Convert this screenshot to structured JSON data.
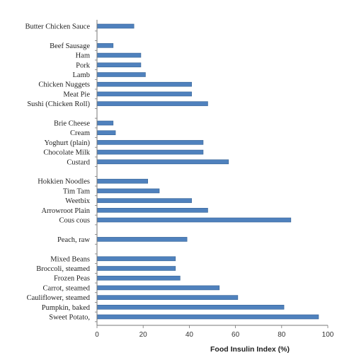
{
  "chart_data": {
    "type": "bar",
    "orientation": "horizontal",
    "title": "",
    "xlabel": "Food Insulin Index (%)",
    "ylabel": "",
    "xlim": [
      0,
      100
    ],
    "xticks": [
      "0",
      "20",
      "40",
      "60",
      "80",
      "100"
    ],
    "grid": false,
    "legend": "none",
    "bar_color": "#4f81bd",
    "bar_edge_color": "#3a6696",
    "categories": [
      "Butter Chicken Sauce",
      "",
      "Beef Sausage",
      "Ham",
      "Pork",
      "Lamb",
      "Chicken Nuggets",
      "Meat Pie",
      "Sushi (Chicken Roll)",
      "",
      "Brie Cheese",
      "Cream",
      "Yoghurt (plain)",
      "Chocolate Milk",
      "Custard",
      "",
      "Hokkien Noodles",
      "Tim Tam",
      "Weetbix",
      "Arrowroot Plain",
      "Cous cous",
      "",
      "Peach, raw",
      "",
      "Mixed Beans",
      "Broccoli, steamed",
      "Frozen Peas",
      "Carrot, steamed",
      "Cauliflower, steamed",
      "Pumpkin, baked",
      "Sweet Potato,"
    ],
    "values": [
      16,
      null,
      7,
      19,
      19,
      21,
      41,
      41,
      48,
      null,
      7,
      8,
      46,
      46,
      57,
      null,
      22,
      27,
      41,
      48,
      84,
      null,
      39,
      null,
      34,
      34,
      36,
      53,
      61,
      81,
      96
    ]
  }
}
